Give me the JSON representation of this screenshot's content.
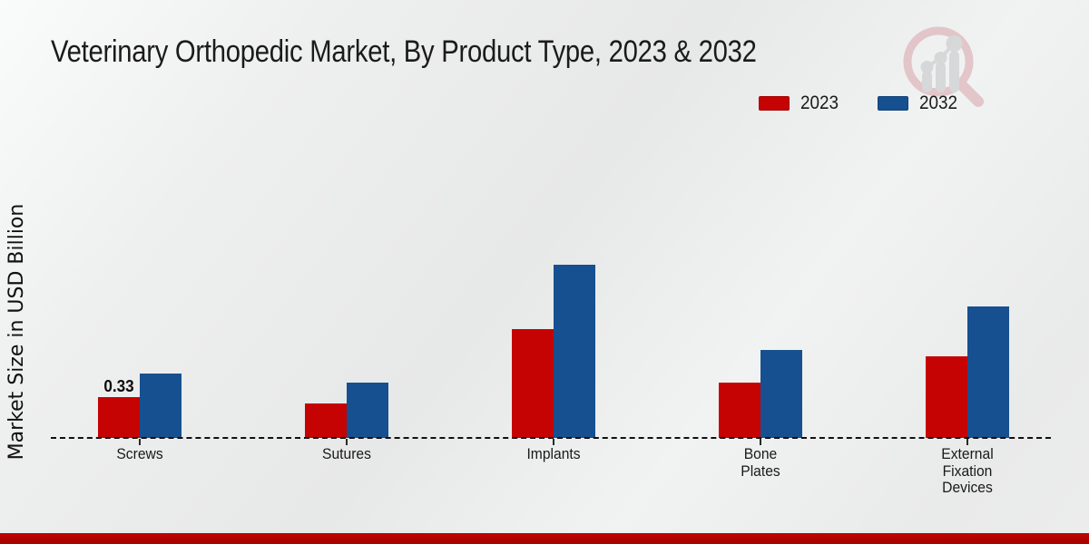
{
  "page": {
    "title": "Veterinary Orthopedic Market, By Product Type, 2023 & 2032",
    "footer_color": "#b00300",
    "background_color": "#ebecec"
  },
  "icons": {
    "logo": "magnifier-bar-chart-logo"
  },
  "chart_data": {
    "type": "bar",
    "title": "Veterinary Orthopedic Market, By Product Type, 2023 & 2032",
    "xlabel": "",
    "ylabel": "Market Size in USD Billion",
    "categories": [
      "Screws",
      "Sutures",
      "Implants",
      "Bone Plates",
      "External Fixation Devices"
    ],
    "series": [
      {
        "name": "2023",
        "color": "#c50303",
        "values": [
          0.33,
          0.28,
          0.88,
          0.45,
          0.66
        ]
      },
      {
        "name": "2032",
        "color": "#165090",
        "values": [
          0.52,
          0.45,
          1.4,
          0.71,
          1.06
        ]
      }
    ],
    "bar_labels": [
      {
        "series_index": 0,
        "category_index": 0,
        "text": "0.33"
      }
    ],
    "ylim": [
      0,
      2.4
    ],
    "grid": false,
    "y_axis_ticks_visible": false,
    "baseline_style": "dashed",
    "legend_position": "top-right"
  }
}
